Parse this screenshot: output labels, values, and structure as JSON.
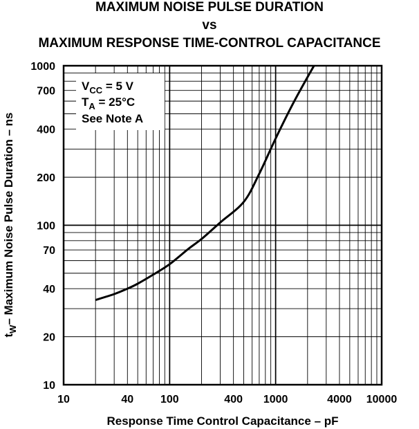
{
  "chart_data": {
    "type": "line",
    "title_lines": [
      "MAXIMUM NOISE PULSE DURATION",
      "vs",
      "MAXIMUM RESPONSE TIME-CONTROL CAPACITANCE"
    ],
    "xlabel": "Response Time Control Capacitance – pF",
    "ylabel_main": "t",
    "ylabel_sub": "W",
    "ylabel_rest": "– Maximum Noise Pulse Duration – ns",
    "x_scale": "log",
    "y_scale": "log",
    "xlim": [
      10,
      10000
    ],
    "ylim": [
      10,
      1000
    ],
    "x_ticks": [
      10,
      40,
      100,
      400,
      1000,
      4000,
      10000
    ],
    "x_tick_labels": [
      "10",
      "40",
      "100",
      "400",
      "1000",
      "4000",
      "10000"
    ],
    "y_ticks": [
      10,
      20,
      40,
      70,
      100,
      200,
      400,
      700,
      1000
    ],
    "y_tick_labels": [
      "10",
      "20",
      "40",
      "70",
      "100",
      "200",
      "400",
      "700",
      "1000"
    ],
    "grid": true,
    "series": [
      {
        "x": [
          20,
          30,
          40,
          50,
          70,
          100,
          150,
          200,
          300,
          500,
          700,
          1000,
          1500,
          2300
        ],
        "y": [
          34,
          37,
          40,
          43,
          49,
          57,
          71,
          82,
          104,
          140,
          210,
          350,
          600,
          1000
        ]
      }
    ],
    "annotation": {
      "line1_main": "V",
      "line1_sub": "CC",
      "line1_rest": " = 5 V",
      "line2_main": "T",
      "line2_sub": "A",
      "line2_rest": " = 25°C",
      "line3": "See Note A"
    }
  }
}
